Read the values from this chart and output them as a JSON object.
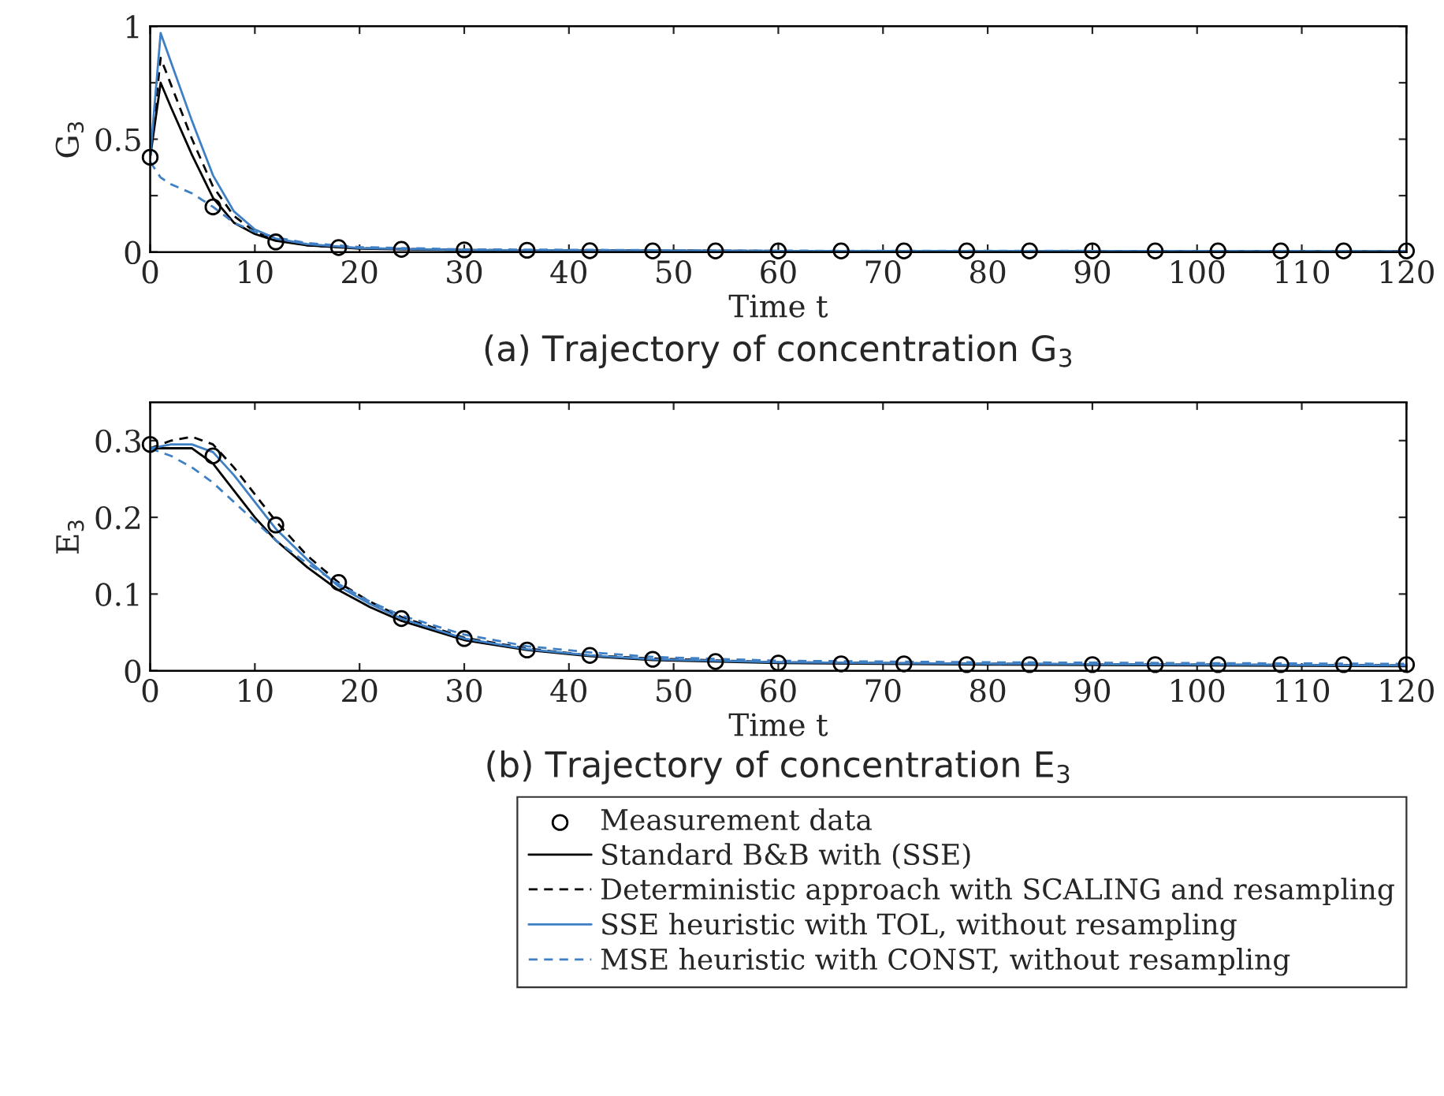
{
  "chart_data": [
    {
      "type": "line",
      "title": "(a) Trajectory of concentration G$_{3}$",
      "xlabel": "Time t",
      "ylabel": "G$_{3}$",
      "xlim": [
        0,
        120
      ],
      "xticks": [
        0,
        10,
        20,
        30,
        40,
        50,
        60,
        70,
        80,
        90,
        100,
        110,
        120
      ],
      "ylim": [
        0,
        1
      ],
      "yticks": [
        0,
        {
          "value": 0.25,
          "label": null
        },
        0.5,
        {
          "value": 0.75,
          "label": null
        },
        1
      ],
      "grid": false,
      "legend": false,
      "series": [
        {
          "type": "scatter",
          "color": "#000000",
          "marker": "circle",
          "x": [
            0,
            6,
            12,
            18,
            24,
            30,
            36,
            42,
            48,
            54,
            60,
            66,
            72,
            78,
            84,
            90,
            96,
            102,
            108,
            114,
            120
          ],
          "values": [
            0.42,
            0.2,
            0.045,
            0.02,
            0.012,
            0.01,
            0.008,
            0.006,
            0.005,
            0.005,
            0.005,
            0.005,
            0.005,
            0.005,
            0.005,
            0.005,
            0.005,
            0.005,
            0.005,
            0.005,
            0.005
          ]
        },
        {
          "color": "#000000",
          "line_style": "solid",
          "x": [
            0,
            1,
            2,
            4,
            6,
            8,
            10,
            12,
            15,
            20,
            30,
            60,
            120
          ],
          "values": [
            0.42,
            0.75,
            0.64,
            0.43,
            0.24,
            0.13,
            0.08,
            0.05,
            0.03,
            0.015,
            0.008,
            0.005,
            0.003
          ]
        },
        {
          "color": "#000000",
          "line_style": "dashed",
          "x": [
            0,
            1,
            2,
            4,
            6,
            8,
            10,
            12,
            15,
            20,
            30,
            60,
            120
          ],
          "values": [
            0.42,
            0.86,
            0.74,
            0.5,
            0.29,
            0.16,
            0.09,
            0.055,
            0.03,
            0.017,
            0.009,
            0.005,
            0.003
          ]
        },
        {
          "color": "#3f7fc4",
          "line_style": "solid",
          "x": [
            0,
            1,
            2,
            4,
            6,
            8,
            10,
            12,
            15,
            20,
            30,
            60,
            120
          ],
          "values": [
            0.42,
            0.97,
            0.84,
            0.58,
            0.34,
            0.18,
            0.1,
            0.06,
            0.035,
            0.018,
            0.009,
            0.005,
            0.003
          ]
        },
        {
          "color": "#3f7fc4",
          "line_style": "dashed",
          "x": [
            0,
            1,
            2,
            4,
            6,
            8,
            10,
            12,
            15,
            20,
            30,
            60,
            120
          ],
          "values": [
            0.4,
            0.33,
            0.3,
            0.26,
            0.2,
            0.13,
            0.09,
            0.065,
            0.04,
            0.022,
            0.012,
            0.006,
            0.004
          ]
        }
      ]
    },
    {
      "type": "line",
      "title": "(b) Trajectory of concentration E$_{3}$",
      "xlabel": "Time t",
      "ylabel": "E$_{3}$",
      "xlim": [
        0,
        120
      ],
      "xticks": [
        0,
        10,
        20,
        30,
        40,
        50,
        60,
        70,
        80,
        90,
        100,
        110,
        120
      ],
      "ylim": [
        0,
        0.35
      ],
      "yticks": [
        0,
        0.1,
        0.2,
        0.3
      ],
      "grid": false,
      "legend": "bottom",
      "series": [
        {
          "type": "scatter",
          "name": "Measurement data",
          "color": "#000000",
          "marker": "circle",
          "x": [
            0,
            6,
            12,
            18,
            24,
            30,
            36,
            42,
            48,
            54,
            60,
            66,
            72,
            78,
            84,
            90,
            96,
            102,
            108,
            114,
            120
          ],
          "values": [
            0.295,
            0.28,
            0.19,
            0.115,
            0.068,
            0.042,
            0.027,
            0.02,
            0.015,
            0.012,
            0.01,
            0.009,
            0.009,
            0.008,
            0.008,
            0.008,
            0.008,
            0.008,
            0.008,
            0.008,
            0.008
          ]
        },
        {
          "name": "Standard B&B with (SSE)",
          "color": "#000000",
          "line_style": "solid",
          "x": [
            0,
            2,
            4,
            6,
            8,
            10,
            12,
            15,
            18,
            21,
            24,
            30,
            36,
            42,
            48,
            60,
            80,
            100,
            120
          ],
          "values": [
            0.29,
            0.29,
            0.29,
            0.27,
            0.235,
            0.2,
            0.17,
            0.135,
            0.105,
            0.083,
            0.065,
            0.04,
            0.027,
            0.019,
            0.014,
            0.01,
            0.008,
            0.007,
            0.006
          ]
        },
        {
          "name": "Deterministic approach with SCALING and resampling",
          "color": "#000000",
          "line_style": "dashed",
          "x": [
            0,
            2,
            4,
            6,
            8,
            10,
            12,
            15,
            18,
            21,
            24,
            30,
            36,
            42,
            48,
            60,
            80,
            100,
            120
          ],
          "values": [
            0.29,
            0.3,
            0.305,
            0.295,
            0.265,
            0.23,
            0.195,
            0.15,
            0.115,
            0.09,
            0.07,
            0.043,
            0.029,
            0.02,
            0.016,
            0.011,
            0.009,
            0.008,
            0.007
          ]
        },
        {
          "name": "SSE heuristic with TOL, without resampling",
          "color": "#3f7fc4",
          "line_style": "solid",
          "x": [
            0,
            2,
            4,
            6,
            8,
            10,
            12,
            15,
            18,
            21,
            24,
            30,
            36,
            42,
            48,
            60,
            80,
            100,
            120
          ],
          "values": [
            0.29,
            0.295,
            0.295,
            0.285,
            0.255,
            0.22,
            0.185,
            0.145,
            0.11,
            0.087,
            0.068,
            0.042,
            0.028,
            0.02,
            0.015,
            0.011,
            0.009,
            0.008,
            0.007
          ]
        },
        {
          "name": "MSE heuristic with CONST, without resampling",
          "color": "#3f7fc4",
          "line_style": "dashed",
          "x": [
            0,
            2,
            4,
            6,
            8,
            10,
            12,
            15,
            18,
            21,
            24,
            30,
            36,
            42,
            48,
            60,
            80,
            100,
            120
          ],
          "values": [
            0.29,
            0.28,
            0.265,
            0.245,
            0.22,
            0.195,
            0.17,
            0.14,
            0.113,
            0.09,
            0.072,
            0.047,
            0.032,
            0.024,
            0.018,
            0.013,
            0.011,
            0.01,
            0.009
          ]
        }
      ]
    }
  ]
}
